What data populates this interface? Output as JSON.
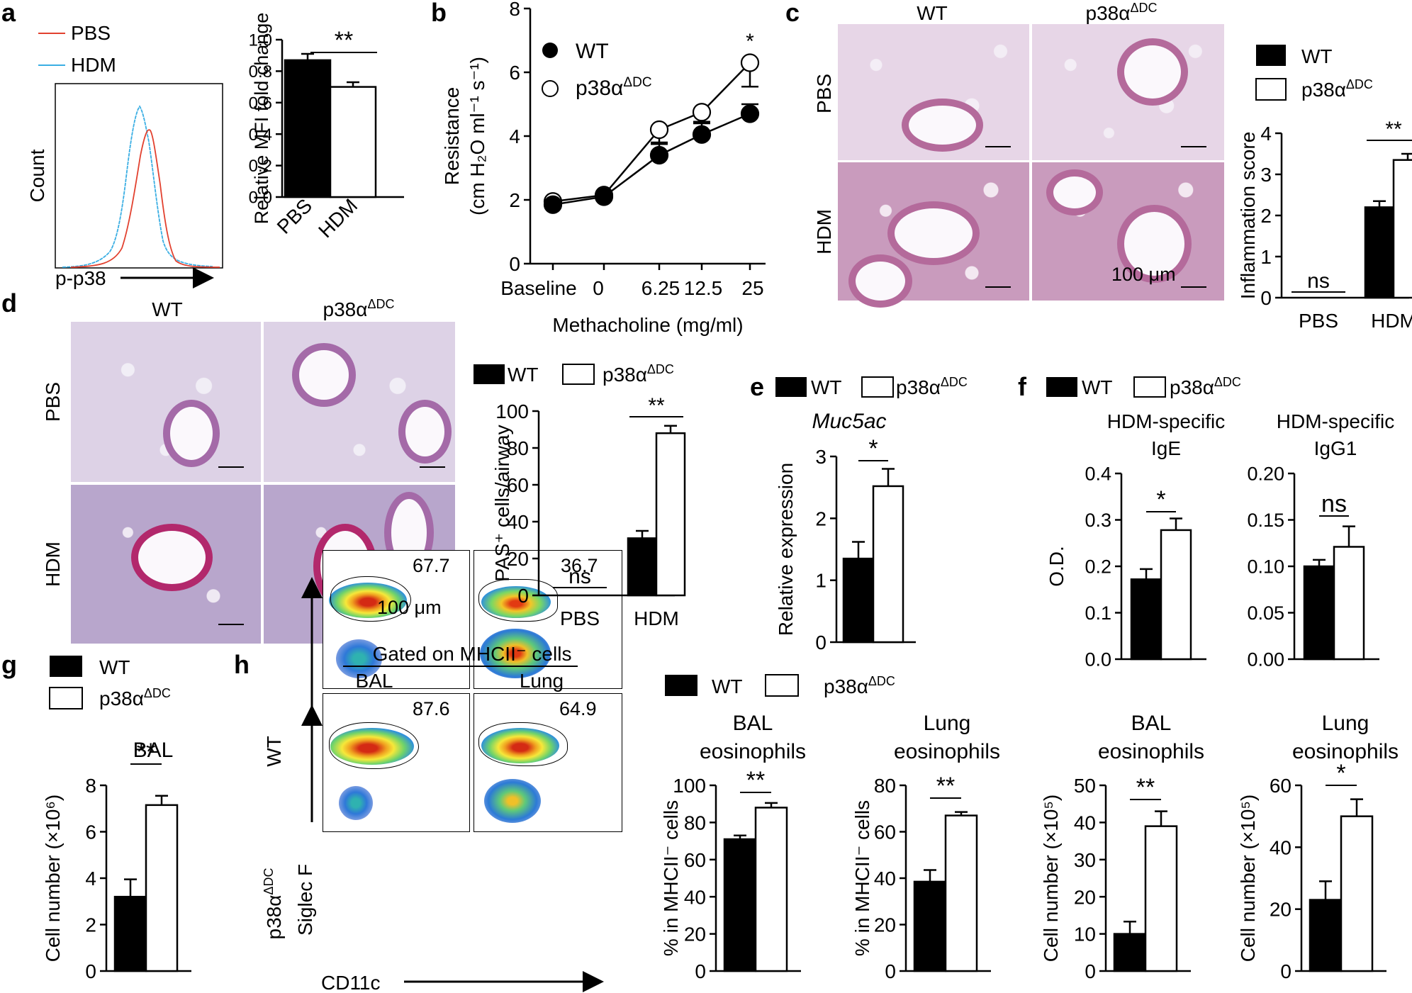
{
  "panels": {
    "a": {
      "letter": "a",
      "legend": [
        "PBS",
        "HDM"
      ],
      "legend_colors": [
        "#e2412f",
        "#3aaee3"
      ],
      "hist_ylabel": "Count",
      "hist_xlabel": "p-p38",
      "sig": "**"
    },
    "b": {
      "letter": "b",
      "sig": "*",
      "legend": [
        "WT",
        "p38α",
        "ΔDC"
      ]
    },
    "c": {
      "letter": "c",
      "col_wt": "WT",
      "col_ko": "p38α",
      "col_ko_sup": "ΔDC",
      "row_pbs": "PBS",
      "row_hdm": "HDM",
      "scale": "100 μm",
      "legend": [
        "WT",
        "p38α",
        "ΔDC"
      ],
      "sig_pbs": "ns",
      "sig_hdm": "**"
    },
    "d": {
      "letter": "d",
      "col_wt": "WT",
      "col_ko": "p38α",
      "col_ko_sup": "ΔDC",
      "row_pbs": "PBS",
      "row_hdm": "HDM",
      "scale": "100 μm",
      "legend": [
        "WT",
        "p38α",
        "ΔDC"
      ],
      "sig_pbs": "ns",
      "sig_hdm": "**"
    },
    "e": {
      "letter": "e",
      "legend": [
        "WT",
        "p38α",
        "ΔDC"
      ],
      "gene": "Muc5ac",
      "sig": "*"
    },
    "f": {
      "letter": "f",
      "legend": [
        "WT",
        "p38α",
        "ΔDC"
      ],
      "sig_ige": "*",
      "sig_igg1": "ns"
    },
    "g": {
      "letter": "g",
      "legend": [
        "WT",
        "p38α",
        "ΔDC"
      ],
      "sig": "**"
    },
    "h": {
      "letter": "h",
      "gated": "Gated on MHCII⁻ cells",
      "col_bal": "BAL",
      "col_lung": "Lung",
      "row_wt": "WT",
      "row_ko": "p38α",
      "row_ko_sup": "ΔDC",
      "yaxis": "Siglec F",
      "xaxis": "CD11c",
      "gates": [
        "67.7",
        "36.7",
        "87.6",
        "64.9"
      ],
      "legend": [
        "WT",
        "p38α",
        "ΔDC"
      ],
      "sigs": [
        "**",
        "**",
        "**",
        "*"
      ]
    }
  },
  "chart_data": [
    {
      "id": "a-bar",
      "type": "bar",
      "categories": [
        "PBS",
        "HDM"
      ],
      "values": [
        0.87,
        0.7
      ],
      "errors": [
        0.04,
        0.03
      ],
      "ylabel": "Relative MFI fold change",
      "ylim": [
        0,
        1.0
      ],
      "yticks": [
        "0.0",
        "0.2",
        "0.4",
        "0.6",
        "0.8",
        "1.0"
      ]
    },
    {
      "id": "b-line",
      "type": "line",
      "x": [
        "Baseline",
        "0",
        "6.25",
        "12.5",
        "25"
      ],
      "series": [
        {
          "name": "WT",
          "values": [
            1.85,
            2.1,
            3.4,
            4.05,
            4.7
          ],
          "errors": [
            0.1,
            0.1,
            0.4,
            0.35,
            0.3
          ]
        },
        {
          "name": "p38αΔDC",
          "values": [
            1.95,
            2.15,
            4.2,
            4.75,
            6.3
          ],
          "errors": [
            0.1,
            0.1,
            0.45,
            0.3,
            0.75
          ]
        }
      ],
      "xlabel": "Methacholine (mg/ml)",
      "ylabel_line1": "Resistance",
      "ylabel_line2": "(cm H₂O ml⁻¹ s⁻¹)",
      "ylim": [
        0,
        8
      ],
      "yticks": [
        "0",
        "2",
        "4",
        "6",
        "8"
      ]
    },
    {
      "id": "c-bar",
      "type": "bar",
      "categories": [
        "PBS",
        "HDM"
      ],
      "series": [
        {
          "name": "WT",
          "values": [
            0.0,
            2.2
          ],
          "errors": [
            0,
            0.15
          ]
        },
        {
          "name": "p38αΔDC",
          "values": [
            0.0,
            3.35
          ],
          "errors": [
            0,
            0.15
          ]
        }
      ],
      "ylabel": "Inflammation score",
      "ylim": [
        0,
        4
      ],
      "yticks": [
        "0",
        "1",
        "2",
        "3",
        "4"
      ]
    },
    {
      "id": "d-bar",
      "type": "bar",
      "categories": [
        "PBS",
        "HDM"
      ],
      "series": [
        {
          "name": "WT",
          "values": [
            0,
            31
          ],
          "errors": [
            0,
            4
          ]
        },
        {
          "name": "p38αΔDC",
          "values": [
            0,
            88
          ],
          "errors": [
            0,
            4
          ]
        }
      ],
      "ylabel": "PAS⁺ cells/airway",
      "ylim": [
        0,
        100
      ],
      "yticks": [
        "0",
        "20",
        "40",
        "60",
        "80",
        "100"
      ]
    },
    {
      "id": "e-bar",
      "type": "bar",
      "categories": [
        "WT",
        "p38αΔDC"
      ],
      "values": [
        1.35,
        2.52
      ],
      "errors": [
        0.27,
        0.28
      ],
      "ylabel": "Relative expression",
      "ylim": [
        0,
        3
      ],
      "yticks": [
        "0",
        "1",
        "2",
        "3"
      ]
    },
    {
      "id": "f-ige",
      "type": "bar",
      "title_line1": "HDM-specific",
      "title_line2": "IgE",
      "categories": [
        "WT",
        "p38αΔDC"
      ],
      "values": [
        0.172,
        0.278
      ],
      "errors": [
        0.022,
        0.025
      ],
      "ylabel": "O.D.",
      "ylim": [
        0,
        0.4
      ],
      "yticks": [
        "0.0",
        "0.1",
        "0.2",
        "0.3",
        "0.4"
      ]
    },
    {
      "id": "f-igg1",
      "type": "bar",
      "title_line1": "HDM-specific",
      "title_line2": "IgG1",
      "categories": [
        "WT",
        "p38αΔDC"
      ],
      "values": [
        0.1,
        0.121
      ],
      "errors": [
        0.007,
        0.022
      ],
      "ylim": [
        0,
        0.2
      ],
      "yticks": [
        "0.00",
        "0.05",
        "0.10",
        "0.15",
        "0.20"
      ]
    },
    {
      "id": "g-bar",
      "type": "bar",
      "title_line1": "BAL",
      "categories": [
        "WT",
        "p38αΔDC"
      ],
      "values": [
        3.2,
        7.15
      ],
      "errors": [
        0.75,
        0.4
      ],
      "ylabel": "Cell number (×10⁶)",
      "ylim": [
        0,
        8
      ],
      "yticks": [
        "0",
        "2",
        "4",
        "6",
        "8"
      ]
    },
    {
      "id": "h1",
      "type": "bar",
      "title_line1": "BAL",
      "title_line2": "eosinophils",
      "categories": [
        "WT",
        "p38αΔDC"
      ],
      "values": [
        71,
        88
      ],
      "errors": [
        2,
        2.5
      ],
      "ylabel": "% in MHCII⁻ cells",
      "ylim": [
        0,
        100
      ],
      "yticks": [
        "0",
        "20",
        "40",
        "60",
        "80",
        "100"
      ]
    },
    {
      "id": "h2",
      "type": "bar",
      "title_line1": "Lung",
      "title_line2": "eosinophils",
      "categories": [
        "WT",
        "p38αΔDC"
      ],
      "values": [
        38.5,
        67
      ],
      "errors": [
        5,
        1.5
      ],
      "ylabel": "% in MHCII⁻ cells",
      "ylim": [
        0,
        80
      ],
      "yticks": [
        "0",
        "20",
        "40",
        "60",
        "80"
      ]
    },
    {
      "id": "h3",
      "type": "bar",
      "title_line1": "BAL",
      "title_line2": "eosinophils",
      "categories": [
        "WT",
        "p38αΔDC"
      ],
      "values": [
        10,
        39
      ],
      "errors": [
        3.3,
        4
      ],
      "ylabel": "Cell number (×10⁵)",
      "ylim": [
        0,
        50
      ],
      "yticks": [
        "0",
        "10",
        "20",
        "30",
        "40",
        "50"
      ]
    },
    {
      "id": "h4",
      "type": "bar",
      "title_line1": "Lung",
      "title_line2": "eosinophils",
      "categories": [
        "WT",
        "p38αΔDC"
      ],
      "values": [
        23,
        50
      ],
      "errors": [
        6,
        5.5
      ],
      "ylabel": "Cell number (×10⁵)",
      "ylim": [
        0,
        60
      ],
      "yticks": [
        "0",
        "20",
        "40",
        "60"
      ]
    }
  ]
}
